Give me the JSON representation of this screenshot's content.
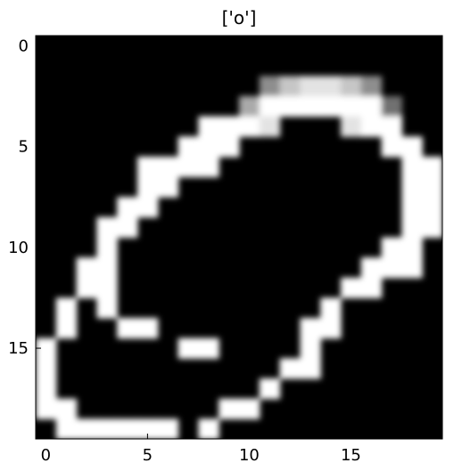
{
  "title": "['o']",
  "chart_data": {
    "type": "heatmap",
    "title": "['o']",
    "xlabel": "",
    "ylabel": "",
    "colormap": "gray",
    "grid": false,
    "x_ticks": [
      0,
      5,
      10,
      15
    ],
    "y_ticks": [
      0,
      5,
      10,
      15
    ],
    "x_tick_labels": [
      "0",
      "5",
      "10",
      "15"
    ],
    "y_tick_labels": [
      "0",
      "5",
      "10",
      "15"
    ],
    "values": [
      [
        0,
        0,
        0,
        0,
        0,
        0,
        0,
        0,
        0,
        0,
        0,
        0,
        0,
        0,
        0,
        0,
        0,
        0,
        0,
        0
      ],
      [
        0,
        0,
        0,
        0,
        0,
        0,
        0,
        0,
        0,
        0,
        0,
        0,
        0,
        0,
        0,
        0,
        0,
        0,
        0,
        0
      ],
      [
        0,
        0,
        0,
        0,
        0,
        0,
        0,
        0,
        0,
        0,
        0,
        5,
        7,
        8,
        8,
        7,
        5,
        0,
        0,
        0
      ],
      [
        0,
        0,
        0,
        0,
        0,
        0,
        0,
        0,
        0,
        0,
        6,
        9,
        9,
        9,
        9,
        9,
        9,
        4,
        0,
        0
      ],
      [
        0,
        0,
        0,
        0,
        0,
        0,
        0,
        0,
        9,
        9,
        9,
        8,
        0,
        0,
        0,
        8,
        9,
        9,
        0,
        0
      ],
      [
        0,
        0,
        0,
        0,
        0,
        0,
        0,
        9,
        9,
        9,
        0,
        0,
        0,
        0,
        0,
        0,
        0,
        9,
        9,
        0
      ],
      [
        0,
        0,
        0,
        0,
        0,
        9,
        9,
        9,
        9,
        0,
        0,
        0,
        0,
        0,
        0,
        0,
        0,
        0,
        9,
        9
      ],
      [
        0,
        0,
        0,
        0,
        0,
        9,
        9,
        0,
        0,
        0,
        0,
        0,
        0,
        0,
        0,
        0,
        0,
        0,
        9,
        9
      ],
      [
        0,
        0,
        0,
        0,
        9,
        9,
        0,
        0,
        0,
        0,
        0,
        0,
        0,
        0,
        0,
        0,
        0,
        0,
        9,
        9
      ],
      [
        0,
        0,
        0,
        9,
        9,
        0,
        0,
        0,
        0,
        0,
        0,
        0,
        0,
        0,
        0,
        0,
        0,
        0,
        9,
        9
      ],
      [
        0,
        0,
        0,
        9,
        0,
        0,
        0,
        0,
        0,
        0,
        0,
        0,
        0,
        0,
        0,
        0,
        0,
        9,
        9,
        0
      ],
      [
        0,
        0,
        9,
        9,
        0,
        0,
        0,
        0,
        0,
        0,
        0,
        0,
        0,
        0,
        0,
        0,
        9,
        9,
        9,
        0
      ],
      [
        0,
        0,
        9,
        9,
        0,
        0,
        0,
        0,
        0,
        0,
        0,
        0,
        0,
        0,
        0,
        9,
        9,
        0,
        0,
        0
      ],
      [
        0,
        9,
        0,
        9,
        0,
        0,
        0,
        0,
        0,
        0,
        0,
        0,
        0,
        0,
        9,
        0,
        0,
        0,
        0,
        0
      ],
      [
        0,
        9,
        0,
        0,
        9,
        9,
        0,
        0,
        0,
        0,
        0,
        0,
        0,
        9,
        9,
        0,
        0,
        0,
        0,
        0
      ],
      [
        9,
        0,
        0,
        0,
        0,
        0,
        0,
        9,
        9,
        0,
        0,
        0,
        0,
        9,
        0,
        0,
        0,
        0,
        0,
        0
      ],
      [
        9,
        0,
        0,
        0,
        0,
        0,
        0,
        0,
        0,
        0,
        0,
        0,
        9,
        9,
        0,
        0,
        0,
        0,
        0,
        0
      ],
      [
        9,
        0,
        0,
        0,
        0,
        0,
        0,
        0,
        0,
        0,
        0,
        9,
        0,
        0,
        0,
        0,
        0,
        0,
        0,
        0
      ],
      [
        9,
        9,
        0,
        0,
        0,
        0,
        0,
        0,
        0,
        9,
        9,
        0,
        0,
        0,
        0,
        0,
        0,
        0,
        0,
        0
      ],
      [
        0,
        9,
        9,
        9,
        9,
        9,
        9,
        0,
        9,
        0,
        0,
        0,
        0,
        0,
        0,
        0,
        0,
        0,
        0,
        0
      ]
    ]
  }
}
